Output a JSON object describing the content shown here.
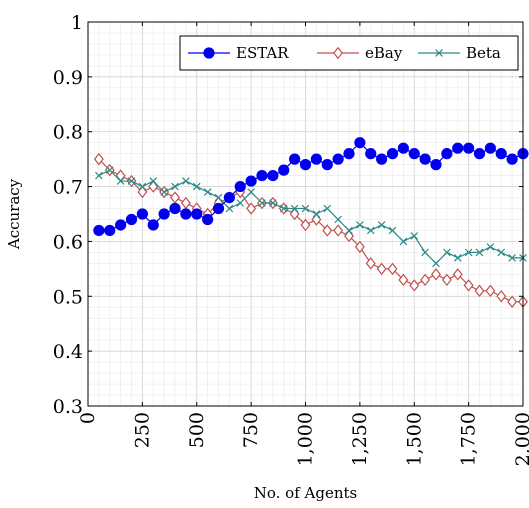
{
  "chart_data": {
    "type": "line",
    "title": "",
    "xlabel": "No. of Agents",
    "ylabel": "Accuracy",
    "xlim": [
      0,
      2000
    ],
    "ylim": [
      0.3,
      1.0
    ],
    "xticks": [
      0,
      250,
      500,
      750,
      1000,
      1250,
      1500,
      1750,
      2000
    ],
    "xtick_labels": [
      "0",
      "250",
      "500",
      "750",
      "1,000",
      "1,250",
      "1,500",
      "1,750",
      "2,000"
    ],
    "yticks": [
      0.3,
      0.4,
      0.5,
      0.6,
      0.7,
      0.8,
      0.9,
      1.0
    ],
    "ytick_labels": [
      "0.3",
      "0.4",
      "0.5",
      "0.6",
      "0.7",
      "0.8",
      "0.9",
      "1"
    ],
    "grid": true,
    "minor_grid": true,
    "legend_position": "top-right",
    "x": [
      50,
      100,
      150,
      200,
      250,
      300,
      350,
      400,
      450,
      500,
      550,
      600,
      650,
      700,
      750,
      800,
      850,
      900,
      950,
      1000,
      1050,
      1100,
      1150,
      1200,
      1250,
      1300,
      1350,
      1400,
      1450,
      1500,
      1550,
      1600,
      1650,
      1700,
      1750,
      1800,
      1850,
      1900,
      1950,
      2000
    ],
    "series": [
      {
        "name": "ESTAR",
        "color": "#0000ee",
        "marker": "filled-circle",
        "values": [
          0.62,
          0.62,
          0.63,
          0.64,
          0.65,
          0.63,
          0.65,
          0.66,
          0.65,
          0.65,
          0.64,
          0.66,
          0.68,
          0.7,
          0.71,
          0.72,
          0.72,
          0.73,
          0.75,
          0.74,
          0.75,
          0.74,
          0.75,
          0.76,
          0.78,
          0.76,
          0.75,
          0.76,
          0.77,
          0.76,
          0.75,
          0.74,
          0.76,
          0.77,
          0.77,
          0.76,
          0.77,
          0.76,
          0.75,
          0.76
        ]
      },
      {
        "name": "eBay",
        "color": "#c0504d",
        "marker": "diamond",
        "values": [
          0.75,
          0.73,
          0.72,
          0.71,
          0.69,
          0.7,
          0.69,
          0.68,
          0.67,
          0.66,
          0.65,
          0.67,
          0.68,
          0.69,
          0.66,
          0.67,
          0.67,
          0.66,
          0.65,
          0.63,
          0.64,
          0.62,
          0.62,
          0.61,
          0.59,
          0.56,
          0.55,
          0.55,
          0.53,
          0.52,
          0.53,
          0.54,
          0.53,
          0.54,
          0.52,
          0.51,
          0.51,
          0.5,
          0.49,
          0.49
        ]
      },
      {
        "name": "Beta",
        "color": "#2a8a8a",
        "marker": "x",
        "values": [
          0.72,
          0.73,
          0.71,
          0.71,
          0.7,
          0.71,
          0.69,
          0.7,
          0.71,
          0.7,
          0.69,
          0.68,
          0.66,
          0.67,
          0.69,
          0.67,
          0.67,
          0.66,
          0.66,
          0.66,
          0.65,
          0.66,
          0.64,
          0.62,
          0.63,
          0.62,
          0.63,
          0.62,
          0.6,
          0.61,
          0.58,
          0.56,
          0.58,
          0.57,
          0.58,
          0.58,
          0.59,
          0.58,
          0.57,
          0.57
        ]
      }
    ]
  }
}
